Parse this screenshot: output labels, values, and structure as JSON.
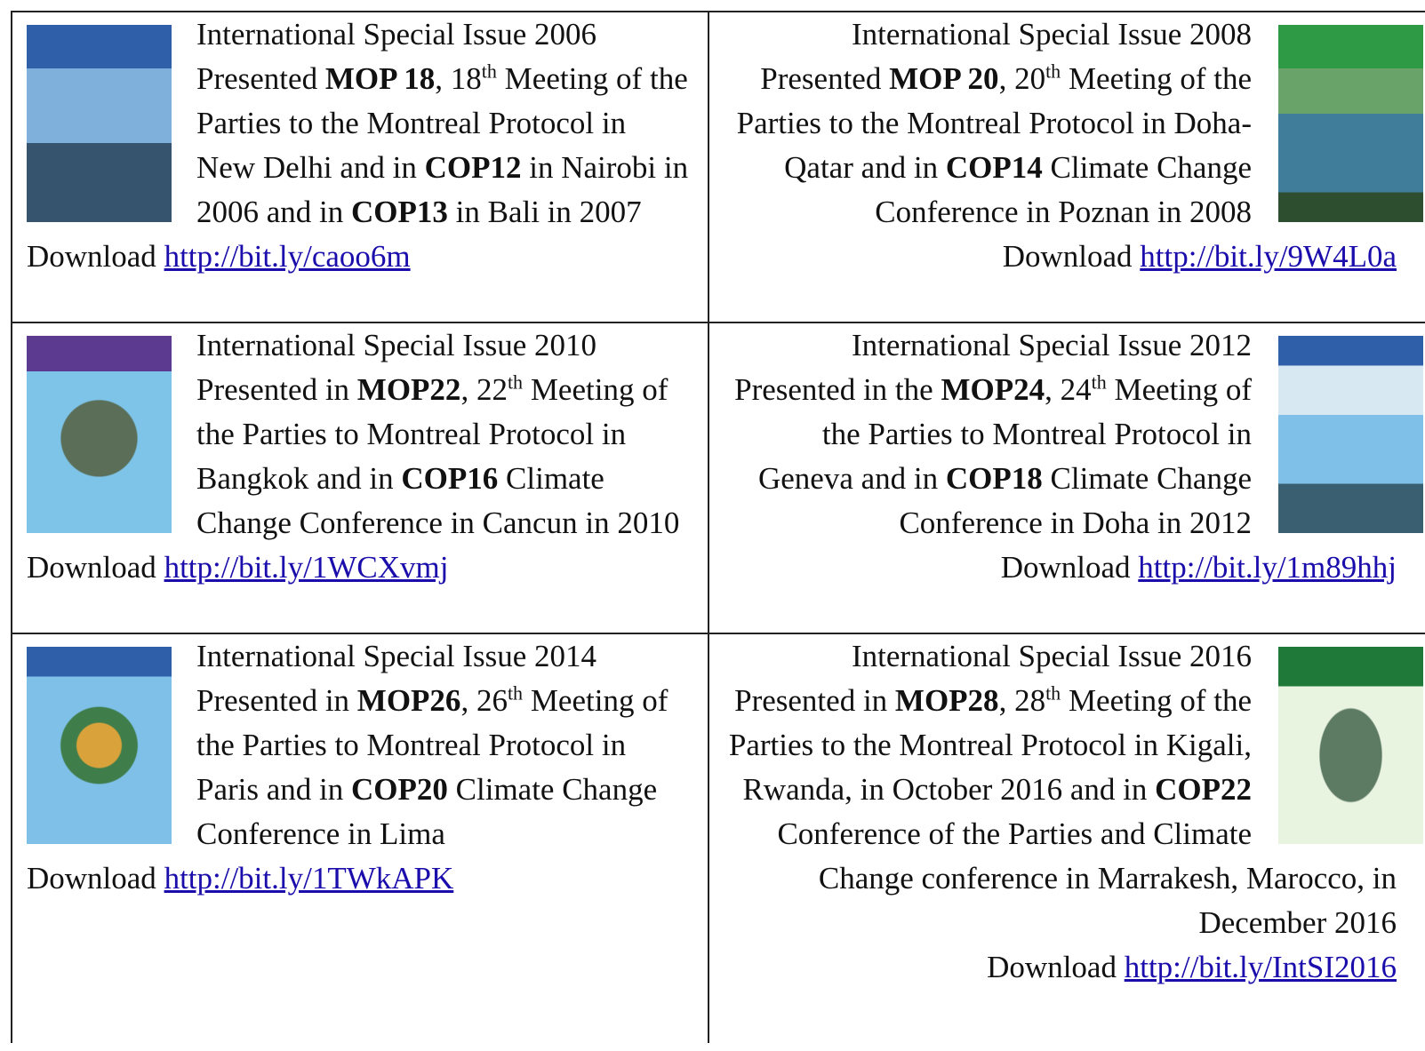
{
  "cells": [
    {
      "heading": "International Special Issue 2006",
      "runs": [
        {
          "text": "Presented "
        },
        {
          "text": "MOP 18",
          "style": "bold"
        },
        {
          "text": ", 18"
        },
        {
          "text": "th",
          "style": "sup"
        },
        {
          "text": " Meeting of the Parties to the Montreal Protocol in New Delhi and in "
        },
        {
          "text": "COP12",
          "style": "bold"
        },
        {
          "text": " in Nairobi in 2006 and in "
        },
        {
          "text": "COP13",
          "style": "bold"
        },
        {
          "text": " in Bali in 2007"
        }
      ],
      "download": "Download",
      "link": "http://bit.ly/caoo6m"
    },
    {
      "heading": "International Special Issue 2008",
      "runs": [
        {
          "text": "Presented "
        },
        {
          "text": "MOP 20",
          "style": "bold"
        },
        {
          "text": ",  20"
        },
        {
          "text": "th",
          "style": "sup"
        },
        {
          "text": " Meeting of the Parties to the Montreal Protocol in Doha-Qatar and in "
        },
        {
          "text": "COP14",
          "style": "bold"
        },
        {
          "text": " Climate Change Conference in Poznan in 2008"
        }
      ],
      "download": "Download",
      "link": "http://bit.ly/9W4L0a"
    },
    {
      "heading": "International Special Issue 2010",
      "runs": [
        {
          "text": "Presented in "
        },
        {
          "text": "MOP22",
          "style": "bold"
        },
        {
          "text": ", 22"
        },
        {
          "text": "th",
          "style": "sup"
        },
        {
          "text": " Meeting of the Parties to Montreal Protocol in Bangkok and in "
        },
        {
          "text": "COP16",
          "style": "bold"
        },
        {
          "text": " Climate Change Conference in Cancun in 2010"
        }
      ],
      "download": "Download",
      "link": "http://bit.ly/1WCXvmj"
    },
    {
      "heading": "International Special Issue 2012",
      "runs": [
        {
          "text": "Presented in the "
        },
        {
          "text": "MOP24",
          "style": "bold"
        },
        {
          "text": ", 24"
        },
        {
          "text": "th",
          "style": "sup"
        },
        {
          "text": " Meeting of the Parties to Montreal Protocol in Geneva and in "
        },
        {
          "text": "COP18",
          "style": "bold"
        },
        {
          "text": " Climate Change Conference in Doha in 2012"
        }
      ],
      "download": "Download",
      "link": "http://bit.ly/1m89hhj"
    },
    {
      "heading": "International Special Issue 2014",
      "runs": [
        {
          "text": "Presented in "
        },
        {
          "text": "MOP26",
          "style": "bold"
        },
        {
          "text": ", 26"
        },
        {
          "text": "th",
          "style": "sup"
        },
        {
          "text": " Meeting of the Parties to Montreal Protocol in Paris and in "
        },
        {
          "text": "COP20",
          "style": "bold"
        },
        {
          "text": " Climate Change Conference in Lima"
        }
      ],
      "download": "Download",
      "link": "http://bit.ly/1TWkAPK"
    },
    {
      "heading": "International Special Issue 2016",
      "runs": [
        {
          "text": "Presented in "
        },
        {
          "text": "MOP28",
          "style": "bold"
        },
        {
          "text": ", 28"
        },
        {
          "text": "th",
          "style": "sup"
        },
        {
          "text": " Meeting of the Parties to the Montreal Protocol in Kigali, Rwanda, in October 2016 and in "
        },
        {
          "text": "COP22",
          "style": "bold"
        },
        {
          "text": " Conference of the Parties and Climate Change conference in Marrakesh, Marocco, in December 2016"
        }
      ],
      "download": "Download",
      "link": "http://bit.ly/IntSI2016"
    }
  ]
}
